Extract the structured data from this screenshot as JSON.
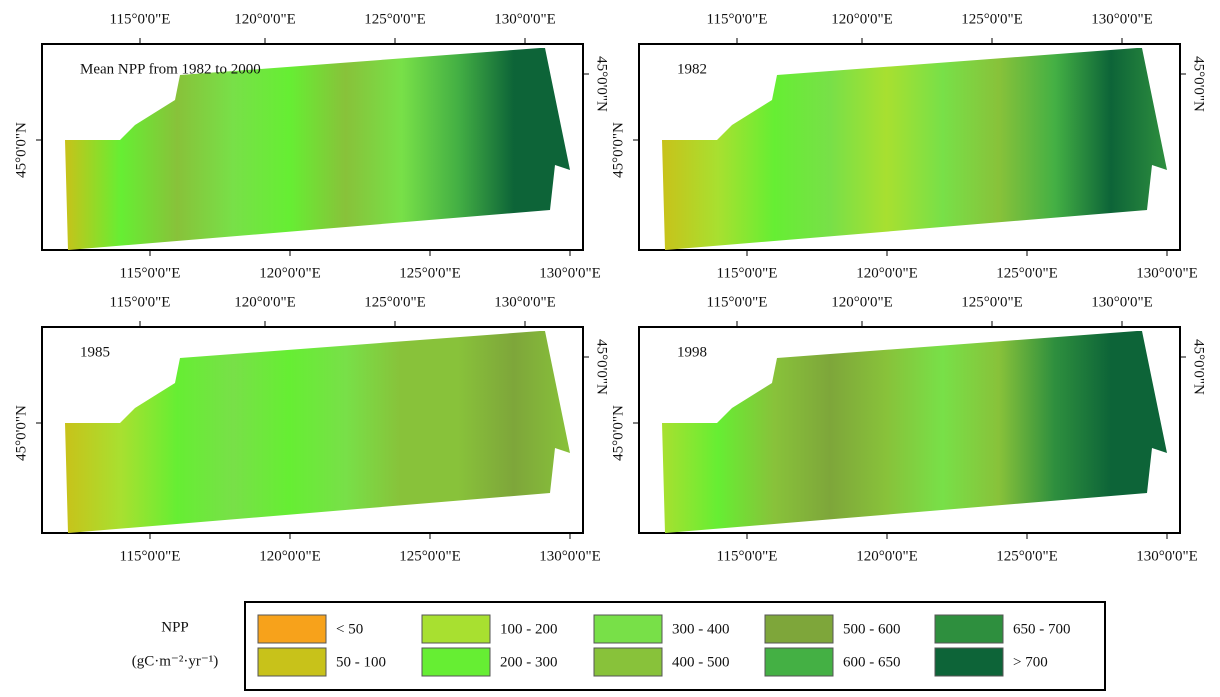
{
  "panels": [
    {
      "title": "Mean NPP from 1982 to 2000",
      "top_labels": [
        "115°0'0\"E",
        "120°0'0\"E",
        "125°0'0\"E",
        "130°0'0\"E"
      ],
      "bottom_labels": [
        "115°0'0\"E",
        "120°0'0\"E",
        "125°0'0\"E",
        "130°0'0\"E"
      ],
      "left_label": "45°0'0\"N",
      "right_label": "45°0'0\"N"
    },
    {
      "title": "1982",
      "top_labels": [
        "115°0'0\"E",
        "120°0'0\"E",
        "125°0'0\"E",
        "130°0'0\"E"
      ],
      "bottom_labels": [
        "115°0'0\"E",
        "120°0'0\"E",
        "125°0'0\"E",
        "130°0'0\"E"
      ],
      "left_label": "45°0'0\"N",
      "right_label": "45°0'0\"N"
    },
    {
      "title": "1985",
      "top_labels": [
        "115°0'0\"E",
        "120°0'0\"E",
        "125°0'0\"E",
        "130°0'0\"E"
      ],
      "bottom_labels": [
        "115°0'0\"E",
        "120°0'0\"E",
        "125°0'0\"E",
        "130°0'0\"E"
      ],
      "left_label": "45°0'0\"N",
      "right_label": "45°0'0\"N"
    },
    {
      "title": "1998",
      "top_labels": [
        "115°0'0\"E",
        "120°0'0\"E",
        "125°0'0\"E",
        "130°0'0\"E"
      ],
      "bottom_labels": [
        "115°0'0\"E",
        "120°0'0\"E",
        "125°0'0\"E",
        "130°0'0\"E"
      ],
      "left_label": "45°0'0\"N",
      "right_label": "45°0'0\"N"
    }
  ],
  "legend": {
    "title": "NPP",
    "unit": "(gC·m⁻²·yr⁻¹)",
    "items": [
      {
        "label": "< 50",
        "color": "#f7a21b"
      },
      {
        "label": "50 - 100",
        "color": "#c8c21a"
      },
      {
        "label": "100 - 200",
        "color": "#a8e030"
      },
      {
        "label": "200 - 300",
        "color": "#66ee33"
      },
      {
        "label": "300 - 400",
        "color": "#78e048"
      },
      {
        "label": "400 - 500",
        "color": "#88c23a"
      },
      {
        "label": "500 - 600",
        "color": "#7ea63a"
      },
      {
        "label": "600 - 650",
        "color": "#44b044"
      },
      {
        "label": "650 - 700",
        "color": "#2e8f3e"
      },
      {
        "label": "> 700",
        "color": "#0d6438"
      }
    ]
  }
}
